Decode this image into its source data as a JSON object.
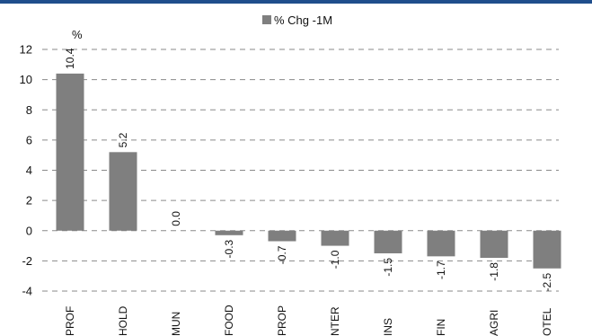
{
  "chart_data": {
    "type": "bar",
    "unit_label": "%",
    "legend": {
      "label": "% Chg -1M",
      "placement": "top-center"
    },
    "series": [
      {
        "name": "% Chg -1M",
        "color": "#7f7f7f"
      }
    ],
    "categories": [
      "PROF",
      "HOLD",
      "MUN",
      "FOOD",
      "PROP",
      "NTER",
      "INS",
      "FIN",
      "AGRI",
      "OTEL"
    ],
    "values": [
      10.4,
      5.2,
      0.0,
      -0.3,
      -0.7,
      -1.0,
      -1.5,
      -1.7,
      -1.8,
      -2.5
    ],
    "data_labels": [
      "10.4",
      "5.2",
      "0.0",
      "-0.3",
      "-0.7",
      "-1.0",
      "-1.5",
      "-1.7",
      "-1.8",
      "-2.5"
    ],
    "ylim": [
      -4,
      12
    ],
    "yticks": [
      12,
      10,
      8,
      6,
      4,
      2,
      0,
      -2,
      -4
    ],
    "grid": true
  }
}
